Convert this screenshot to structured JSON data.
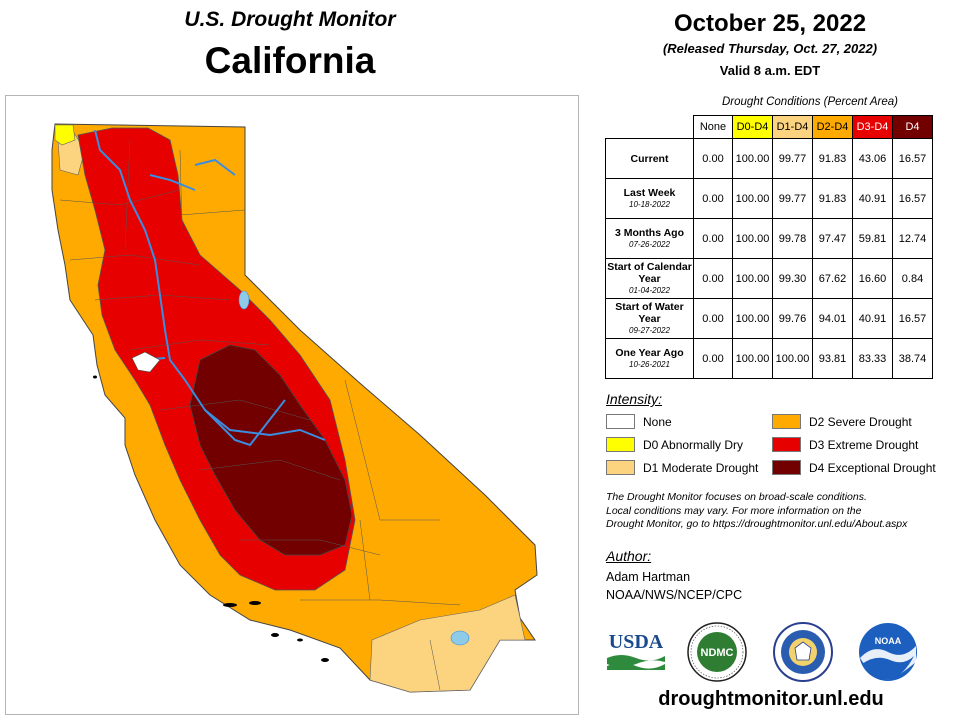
{
  "header": {
    "title": "U.S. Drought Monitor",
    "region": "California"
  },
  "date_block": {
    "date": "October 25, 2022",
    "released": "(Released Thursday, Oct. 27, 2022)",
    "valid": "Valid 8 a.m. EDT"
  },
  "table": {
    "caption": "Drought Conditions (Percent Area)",
    "columns": [
      "None",
      "D0-D4",
      "D1-D4",
      "D2-D4",
      "D3-D4",
      "D4"
    ],
    "column_colors": [
      "#ffffff",
      "#ffff00",
      "#fcd37f",
      "#ffaa00",
      "#e60000",
      "#730000"
    ],
    "rows": [
      {
        "label": "Current",
        "sublabel": "",
        "values": [
          "0.00",
          "100.00",
          "99.77",
          "91.83",
          "43.06",
          "16.57"
        ]
      },
      {
        "label": "Last Week",
        "sublabel": "10-18-2022",
        "values": [
          "0.00",
          "100.00",
          "99.77",
          "91.83",
          "40.91",
          "16.57"
        ]
      },
      {
        "label": "3 Months Ago",
        "sublabel": "07-26-2022",
        "values": [
          "0.00",
          "100.00",
          "99.78",
          "97.47",
          "59.81",
          "12.74"
        ]
      },
      {
        "label": "Start of Calendar Year",
        "sublabel": "01-04-2022",
        "values": [
          "0.00",
          "100.00",
          "99.30",
          "67.62",
          "16.60",
          "0.84"
        ]
      },
      {
        "label": "Start of Water Year",
        "sublabel": "09-27-2022",
        "values": [
          "0.00",
          "100.00",
          "99.76",
          "94.01",
          "40.91",
          "16.57"
        ]
      },
      {
        "label": "One Year Ago",
        "sublabel": "10-26-2021",
        "values": [
          "0.00",
          "100.00",
          "100.00",
          "93.81",
          "83.33",
          "38.74"
        ]
      }
    ]
  },
  "legend": {
    "heading": "Intensity:",
    "items": [
      {
        "label": "None",
        "color": "#ffffff"
      },
      {
        "label": "D0 Abnormally Dry",
        "color": "#ffff00"
      },
      {
        "label": "D1 Moderate Drought",
        "color": "#fcd37f"
      },
      {
        "label": "D2 Severe Drought",
        "color": "#ffaa00"
      },
      {
        "label": "D3 Extreme Drought",
        "color": "#e60000"
      },
      {
        "label": "D4 Exceptional Drought",
        "color": "#730000"
      }
    ]
  },
  "disclaimer": {
    "line1": "The Drought Monitor focuses on broad-scale conditions.",
    "line2": "Local conditions may vary. For more information on the",
    "line3": "Drought Monitor, go to https://droughtmonitor.unl.edu/About.aspx"
  },
  "author": {
    "heading": "Author:",
    "name": "Adam Hartman",
    "org": "NOAA/NWS/NCEP/CPC"
  },
  "logos": {
    "usda": "USDA",
    "ndmc": "NDMC",
    "noaa": "NOAA"
  },
  "footer": {
    "url": "droughtmonitor.unl.edu"
  },
  "map_colors": {
    "d0": "#ffff00",
    "d1": "#fcd37f",
    "d2": "#ffaa00",
    "d3": "#e60000",
    "d4": "#730000",
    "rivers": "#3b8de0",
    "lakes": "#8ecbe8"
  }
}
